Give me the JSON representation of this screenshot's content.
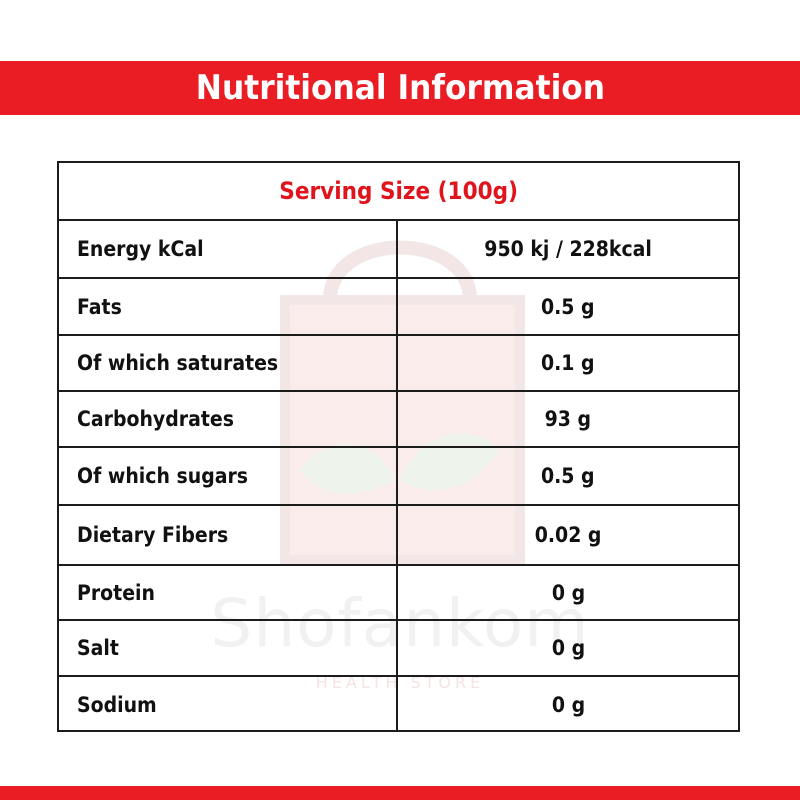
{
  "banner": {
    "title": "Nutritional Information"
  },
  "watermark": {
    "brand": "Shofankom",
    "subtitle": "HEALTH STORE"
  },
  "table": {
    "serving_size": "Serving Size (100g)",
    "rows": [
      {
        "name": "Energy kCal",
        "value": "950 kj / 228kcal"
      },
      {
        "name": "Fats",
        "value": "0.5 g"
      },
      {
        "name": "Of which saturates",
        "value": "0.1 g"
      },
      {
        "name": "Carbohydrates",
        "value": "93 g"
      },
      {
        "name": "Of which sugars",
        "value": "0.5 g"
      },
      {
        "name": "Dietary Fibers",
        "value": "0.02 g"
      },
      {
        "name": "Protein",
        "value": "0 g"
      },
      {
        "name": "Salt",
        "value": "0 g"
      },
      {
        "name": "Sodium",
        "value": "0 g"
      }
    ]
  },
  "colors": {
    "accent_red": "#ea1c24",
    "serving_text_red": "#e0141c",
    "border": "#1c1c1c",
    "text": "#111111"
  }
}
